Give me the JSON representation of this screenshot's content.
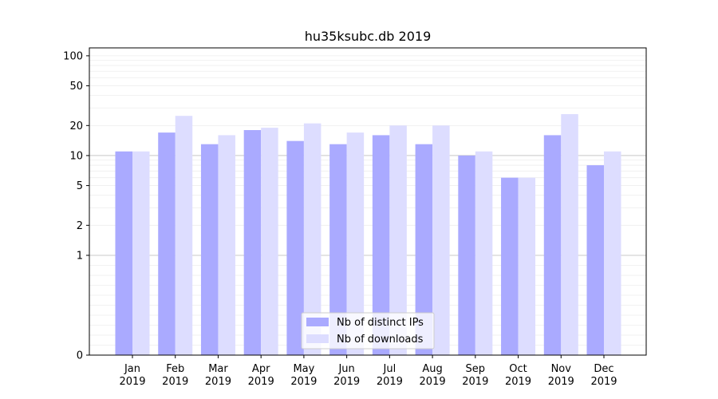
{
  "chart_data": {
    "type": "bar",
    "title": "hu35ksubc.db 2019",
    "xlabel": "",
    "ylabel": "",
    "y_scale": "symlog",
    "ylim": [
      0,
      120
    ],
    "y_ticks": [
      0,
      1,
      2,
      5,
      10,
      20,
      50,
      100
    ],
    "y_tick_labels": [
      "0",
      "1",
      "2",
      "5",
      "10",
      "20",
      "50",
      "100"
    ],
    "categories": [
      {
        "month": "Jan",
        "year": "2019"
      },
      {
        "month": "Feb",
        "year": "2019"
      },
      {
        "month": "Mar",
        "year": "2019"
      },
      {
        "month": "Apr",
        "year": "2019"
      },
      {
        "month": "May",
        "year": "2019"
      },
      {
        "month": "Jun",
        "year": "2019"
      },
      {
        "month": "Jul",
        "year": "2019"
      },
      {
        "month": "Aug",
        "year": "2019"
      },
      {
        "month": "Sep",
        "year": "2019"
      },
      {
        "month": "Oct",
        "year": "2019"
      },
      {
        "month": "Nov",
        "year": "2019"
      },
      {
        "month": "Dec",
        "year": "2019"
      }
    ],
    "series": [
      {
        "name": "Nb of distinct IPs",
        "color": "#aaaaff",
        "values": [
          11,
          17,
          13,
          18,
          14,
          13,
          16,
          13,
          10,
          6,
          16,
          8
        ]
      },
      {
        "name": "Nb of downloads",
        "color": "#ddddff",
        "values": [
          11,
          25,
          16,
          19,
          21,
          17,
          20,
          20,
          11,
          6,
          26,
          11
        ]
      }
    ],
    "legend": {
      "position": "lower-center"
    },
    "grid": {
      "major_lines": [
        1,
        10
      ],
      "major_color": "#c8c8c8",
      "minor_color": "#eeeeee"
    }
  }
}
